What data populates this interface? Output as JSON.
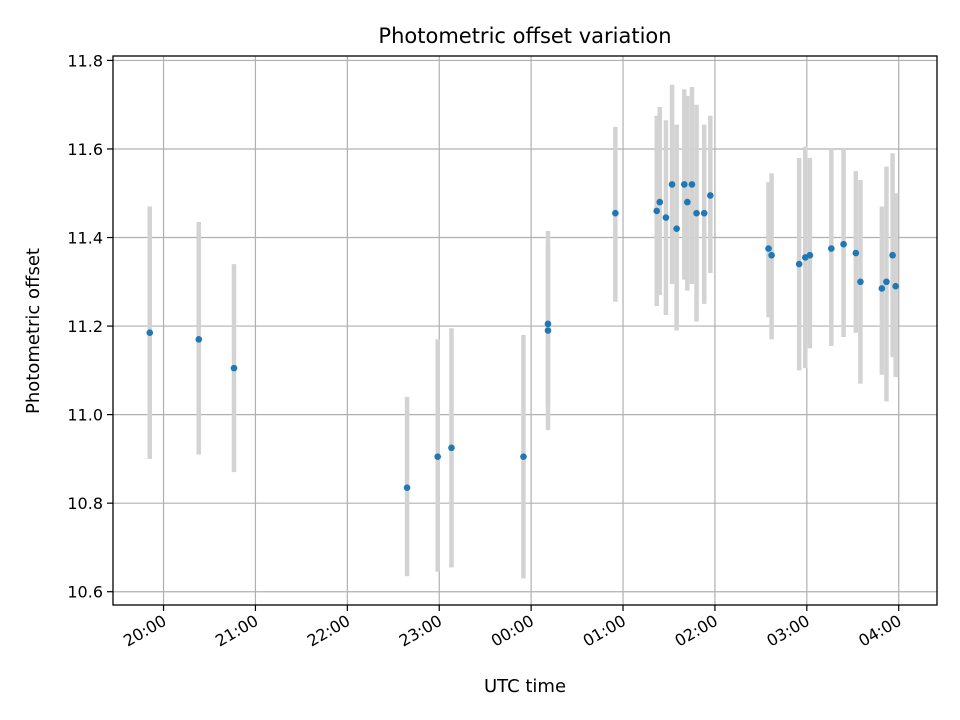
{
  "chart_data": {
    "type": "scatter",
    "title": "Photometric offset variation",
    "xlabel": "UTC time",
    "ylabel": "Photometric offset",
    "x_axis_kind": "time",
    "x_ticks": [
      "20:00",
      "21:00",
      "22:00",
      "23:00",
      "00:00",
      "01:00",
      "02:00",
      "03:00",
      "04:00"
    ],
    "x_tick_angle": -30,
    "xlim": [
      "19:27",
      "04:25"
    ],
    "ylim": [
      10.57,
      11.81
    ],
    "y_ticks": [
      "10.6",
      "10.8",
      "11.0",
      "11.2",
      "11.4",
      "11.6",
      "11.8"
    ],
    "grid": true,
    "colors": {
      "marker": "#1f77b4",
      "errorbar": "#d3d3d3",
      "grid": "#b0b0b0"
    },
    "points": [
      {
        "x": "19:51",
        "y": 11.185,
        "ylow": 10.9,
        "yhigh": 11.47
      },
      {
        "x": "20:23",
        "y": 11.17,
        "ylow": 10.91,
        "yhigh": 11.435
      },
      {
        "x": "20:46",
        "y": 11.105,
        "ylow": 10.87,
        "yhigh": 11.34
      },
      {
        "x": "22:39",
        "y": 10.835,
        "ylow": 10.635,
        "yhigh": 11.04
      },
      {
        "x": "22:59",
        "y": 10.905,
        "ylow": 10.645,
        "yhigh": 11.17
      },
      {
        "x": "23:08",
        "y": 10.925,
        "ylow": 10.655,
        "yhigh": 11.195
      },
      {
        "x": "23:55",
        "y": 10.905,
        "ylow": 10.63,
        "yhigh": 11.18
      },
      {
        "x": "00:11",
        "y": 11.19,
        "ylow": 11.02,
        "yhigh": 11.38
      },
      {
        "x": "00:11",
        "y": 11.205,
        "ylow": 10.965,
        "yhigh": 11.415
      },
      {
        "x": "00:55",
        "y": 11.455,
        "ylow": 11.255,
        "yhigh": 11.65
      },
      {
        "x": "01:22",
        "y": 11.46,
        "ylow": 11.245,
        "yhigh": 11.675
      },
      {
        "x": "01:24",
        "y": 11.48,
        "ylow": 11.27,
        "yhigh": 11.695
      },
      {
        "x": "01:28",
        "y": 11.445,
        "ylow": 11.225,
        "yhigh": 11.665
      },
      {
        "x": "01:32",
        "y": 11.52,
        "ylow": 11.295,
        "yhigh": 11.745
      },
      {
        "x": "01:35",
        "y": 11.42,
        "ylow": 11.19,
        "yhigh": 11.655
      },
      {
        "x": "01:40",
        "y": 11.52,
        "ylow": 11.305,
        "yhigh": 11.735
      },
      {
        "x": "01:42",
        "y": 11.48,
        "ylow": 11.28,
        "yhigh": 11.72
      },
      {
        "x": "01:45",
        "y": 11.52,
        "ylow": 11.295,
        "yhigh": 11.74
      },
      {
        "x": "01:48",
        "y": 11.455,
        "ylow": 11.21,
        "yhigh": 11.7
      },
      {
        "x": "01:53",
        "y": 11.455,
        "ylow": 11.25,
        "yhigh": 11.655
      },
      {
        "x": "01:57",
        "y": 11.495,
        "ylow": 11.32,
        "yhigh": 11.675
      },
      {
        "x": "02:35",
        "y": 11.375,
        "ylow": 11.22,
        "yhigh": 11.525
      },
      {
        "x": "02:37",
        "y": 11.36,
        "ylow": 11.17,
        "yhigh": 11.545
      },
      {
        "x": "02:55",
        "y": 11.34,
        "ylow": 11.1,
        "yhigh": 11.58
      },
      {
        "x": "02:59",
        "y": 11.355,
        "ylow": 11.105,
        "yhigh": 11.605
      },
      {
        "x": "03:02",
        "y": 11.36,
        "ylow": 11.15,
        "yhigh": 11.58
      },
      {
        "x": "03:16",
        "y": 11.375,
        "ylow": 11.155,
        "yhigh": 11.6
      },
      {
        "x": "03:24",
        "y": 11.385,
        "ylow": 11.175,
        "yhigh": 11.6
      },
      {
        "x": "03:32",
        "y": 11.365,
        "ylow": 11.185,
        "yhigh": 11.55
      },
      {
        "x": "03:35",
        "y": 11.3,
        "ylow": 11.07,
        "yhigh": 11.53
      },
      {
        "x": "03:49",
        "y": 11.285,
        "ylow": 11.09,
        "yhigh": 11.47
      },
      {
        "x": "03:52",
        "y": 11.3,
        "ylow": 11.03,
        "yhigh": 11.56
      },
      {
        "x": "03:56",
        "y": 11.36,
        "ylow": 11.13,
        "yhigh": 11.59
      },
      {
        "x": "03:58",
        "y": 11.29,
        "ylow": 11.085,
        "yhigh": 11.5
      }
    ]
  }
}
